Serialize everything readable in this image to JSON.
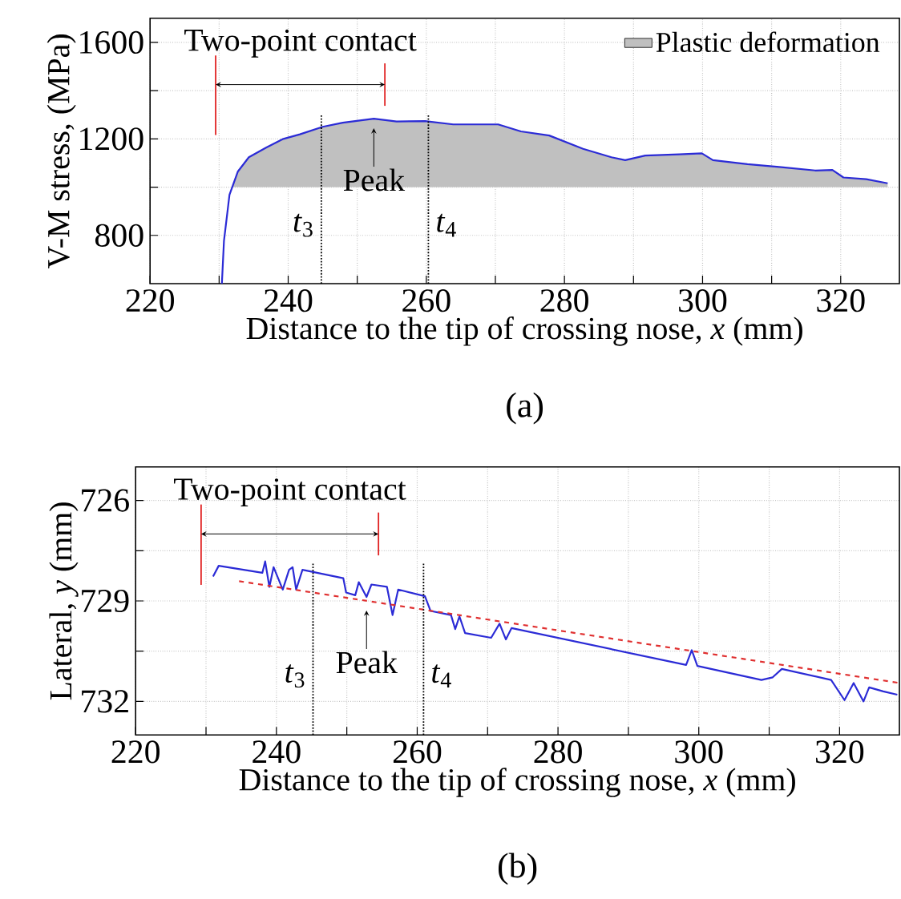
{
  "chart_data": [
    {
      "type": "line",
      "xlabel": "Distance to the tip of crossing nose, *x* (mm)",
      "ylabel": "V-M stress, (MPa)",
      "xlim": [
        220,
        328.5
      ],
      "ylim": [
        600,
        1700
      ],
      "xticks": [
        220,
        {
          "value": 230,
          "label": null
        },
        240,
        {
          "value": 250,
          "label": null
        },
        260,
        {
          "value": 270,
          "label": null
        },
        280,
        {
          "value": 290,
          "label": null
        },
        300,
        {
          "value": 310,
          "label": null
        },
        320
      ],
      "yticks": [
        800,
        {
          "value": 1000,
          "label": null
        },
        1200,
        {
          "value": 1400,
          "label": null
        },
        1600
      ],
      "grid": true,
      "legend": "top right",
      "series": [
        {
          "name": "Plastic deformation",
          "type": "area",
          "color": "#c0c0c0",
          "x": [
            231.9,
            232.7,
            234.3,
            236.8,
            239.3,
            241.7,
            245,
            247.9,
            252.4,
            255.7,
            259.8,
            263.9,
            270.4,
            273.7,
            277.8,
            282.7,
            286.8,
            288.8,
            291.7,
            296.6,
            299.9,
            301.5,
            306.5,
            311.4,
            316.3,
            318.8,
            320.4,
            323.7,
            326.8
          ],
          "values": [
            1000,
            1064,
            1124,
            1164,
            1200,
            1219,
            1250,
            1267,
            1284,
            1272,
            1274,
            1260,
            1260,
            1231,
            1214,
            1159,
            1124,
            1112,
            1131,
            1136,
            1140,
            1112,
            1095,
            1083,
            1069,
            1071,
            1040,
            1033,
            1016
          ]
        },
        {
          "color": "#2b2bd6",
          "x": [
            230.4,
            230.7,
            231.5,
            232.7,
            234.3,
            236.8,
            239.3,
            241.7,
            245,
            247.9,
            252.4,
            255.7,
            259.8,
            263.9,
            270.4,
            273.7,
            277.8,
            282.7,
            286.8,
            288.8,
            291.7,
            296.6,
            299.9,
            301.5,
            306.5,
            311.4,
            316.3,
            318.8,
            320.4,
            323.7,
            326.8
          ],
          "values": [
            600,
            777,
            968,
            1064,
            1124,
            1164,
            1200,
            1219,
            1250,
            1267,
            1284,
            1272,
            1274,
            1260,
            1260,
            1231,
            1214,
            1159,
            1124,
            1112,
            1131,
            1136,
            1140,
            1112,
            1095,
            1083,
            1069,
            1071,
            1040,
            1033,
            1016
          ]
        }
      ],
      "ref_lines": [
        {
          "axis": "x",
          "value": 229.5,
          "color": "#e02020",
          "line_style": "solid"
        },
        {
          "axis": "x",
          "value": 254,
          "color": "#e02020",
          "line_style": "solid"
        },
        {
          "axis": "x",
          "value": 244.8,
          "label": "*t*$_{3}$"
        },
        {
          "axis": "x",
          "value": 260.3,
          "label": "*t*$_{4}$"
        }
      ],
      "annotations": [
        {
          "text": "Peak",
          "x": 252.4,
          "y": 1284
        },
        "Two-point contact",
        "(a)"
      ]
    },
    {
      "type": "line",
      "xlabel": "Distance to the tip of crossing nose, *x* (mm)",
      "ylabel": "Lateral, *y* (mm)",
      "xlim": [
        220,
        328.5
      ],
      "ylim": [
        733,
        725
      ],
      "xticks": [
        220,
        {
          "value": 230,
          "label": null
        },
        240,
        {
          "value": 250,
          "label": null
        },
        260,
        {
          "value": 270,
          "label": null
        },
        280,
        {
          "value": 290,
          "label": null
        },
        300,
        {
          "value": 310,
          "label": null
        },
        320
      ],
      "yticks": [
        726,
        {
          "value": 727.5,
          "label": null
        },
        729,
        {
          "value": 730.5,
          "label": null
        },
        732
      ],
      "grid": true,
      "series": [
        {
          "color": "#2b2bd6",
          "x": [
            231.0,
            231.8,
            238.0,
            238.4,
            239.0,
            239.6,
            240.9,
            241.8,
            242.3,
            242.8,
            243.7,
            249.5,
            249.9,
            251.2,
            251.7,
            252.8,
            253.5,
            255.7,
            256.5,
            257.3,
            261.1,
            261.9,
            264.8,
            265.4,
            266.0,
            266.8,
            270.5,
            271.7,
            272.6,
            273.4,
            298.2,
            299.0,
            299.8,
            308.9,
            310.5,
            311.8,
            318.8,
            320.7,
            322.0,
            323.4,
            324.2,
            326.2,
            328.2
          ],
          "values": [
            728.27,
            727.95,
            728.16,
            727.82,
            728.58,
            727.99,
            728.66,
            728.07,
            727.99,
            728.66,
            728.07,
            728.32,
            728.75,
            728.83,
            728.44,
            728.88,
            728.51,
            728.58,
            729.42,
            728.66,
            728.86,
            729.3,
            729.42,
            729.84,
            729.46,
            729.96,
            730.1,
            729.68,
            730.15,
            729.81,
            730.91,
            730.47,
            730.94,
            731.36,
            731.28,
            731.03,
            731.36,
            731.96,
            731.45,
            732.0,
            731.58,
            731.7,
            731.8
          ]
        },
        {
          "color": "#e03030",
          "line_style": "dashed",
          "x": [
            234.7,
            328.5
          ],
          "values": [
            728.41,
            731.45
          ]
        }
      ],
      "ref_lines": [
        {
          "axis": "x",
          "value": 229.3,
          "color": "#e02020",
          "line_style": "solid"
        },
        {
          "axis": "x",
          "value": 254.5,
          "color": "#e02020",
          "line_style": "solid"
        },
        {
          "axis": "x",
          "value": 245.2,
          "label": "*t*$_{3}$"
        },
        {
          "axis": "x",
          "value": 260.9,
          "label": "*t*$_{4}$"
        }
      ],
      "annotations": [
        {
          "text": "Peak",
          "x": 252.8,
          "y": 729.0
        },
        "Two-point contact",
        "(b)"
      ]
    }
  ]
}
